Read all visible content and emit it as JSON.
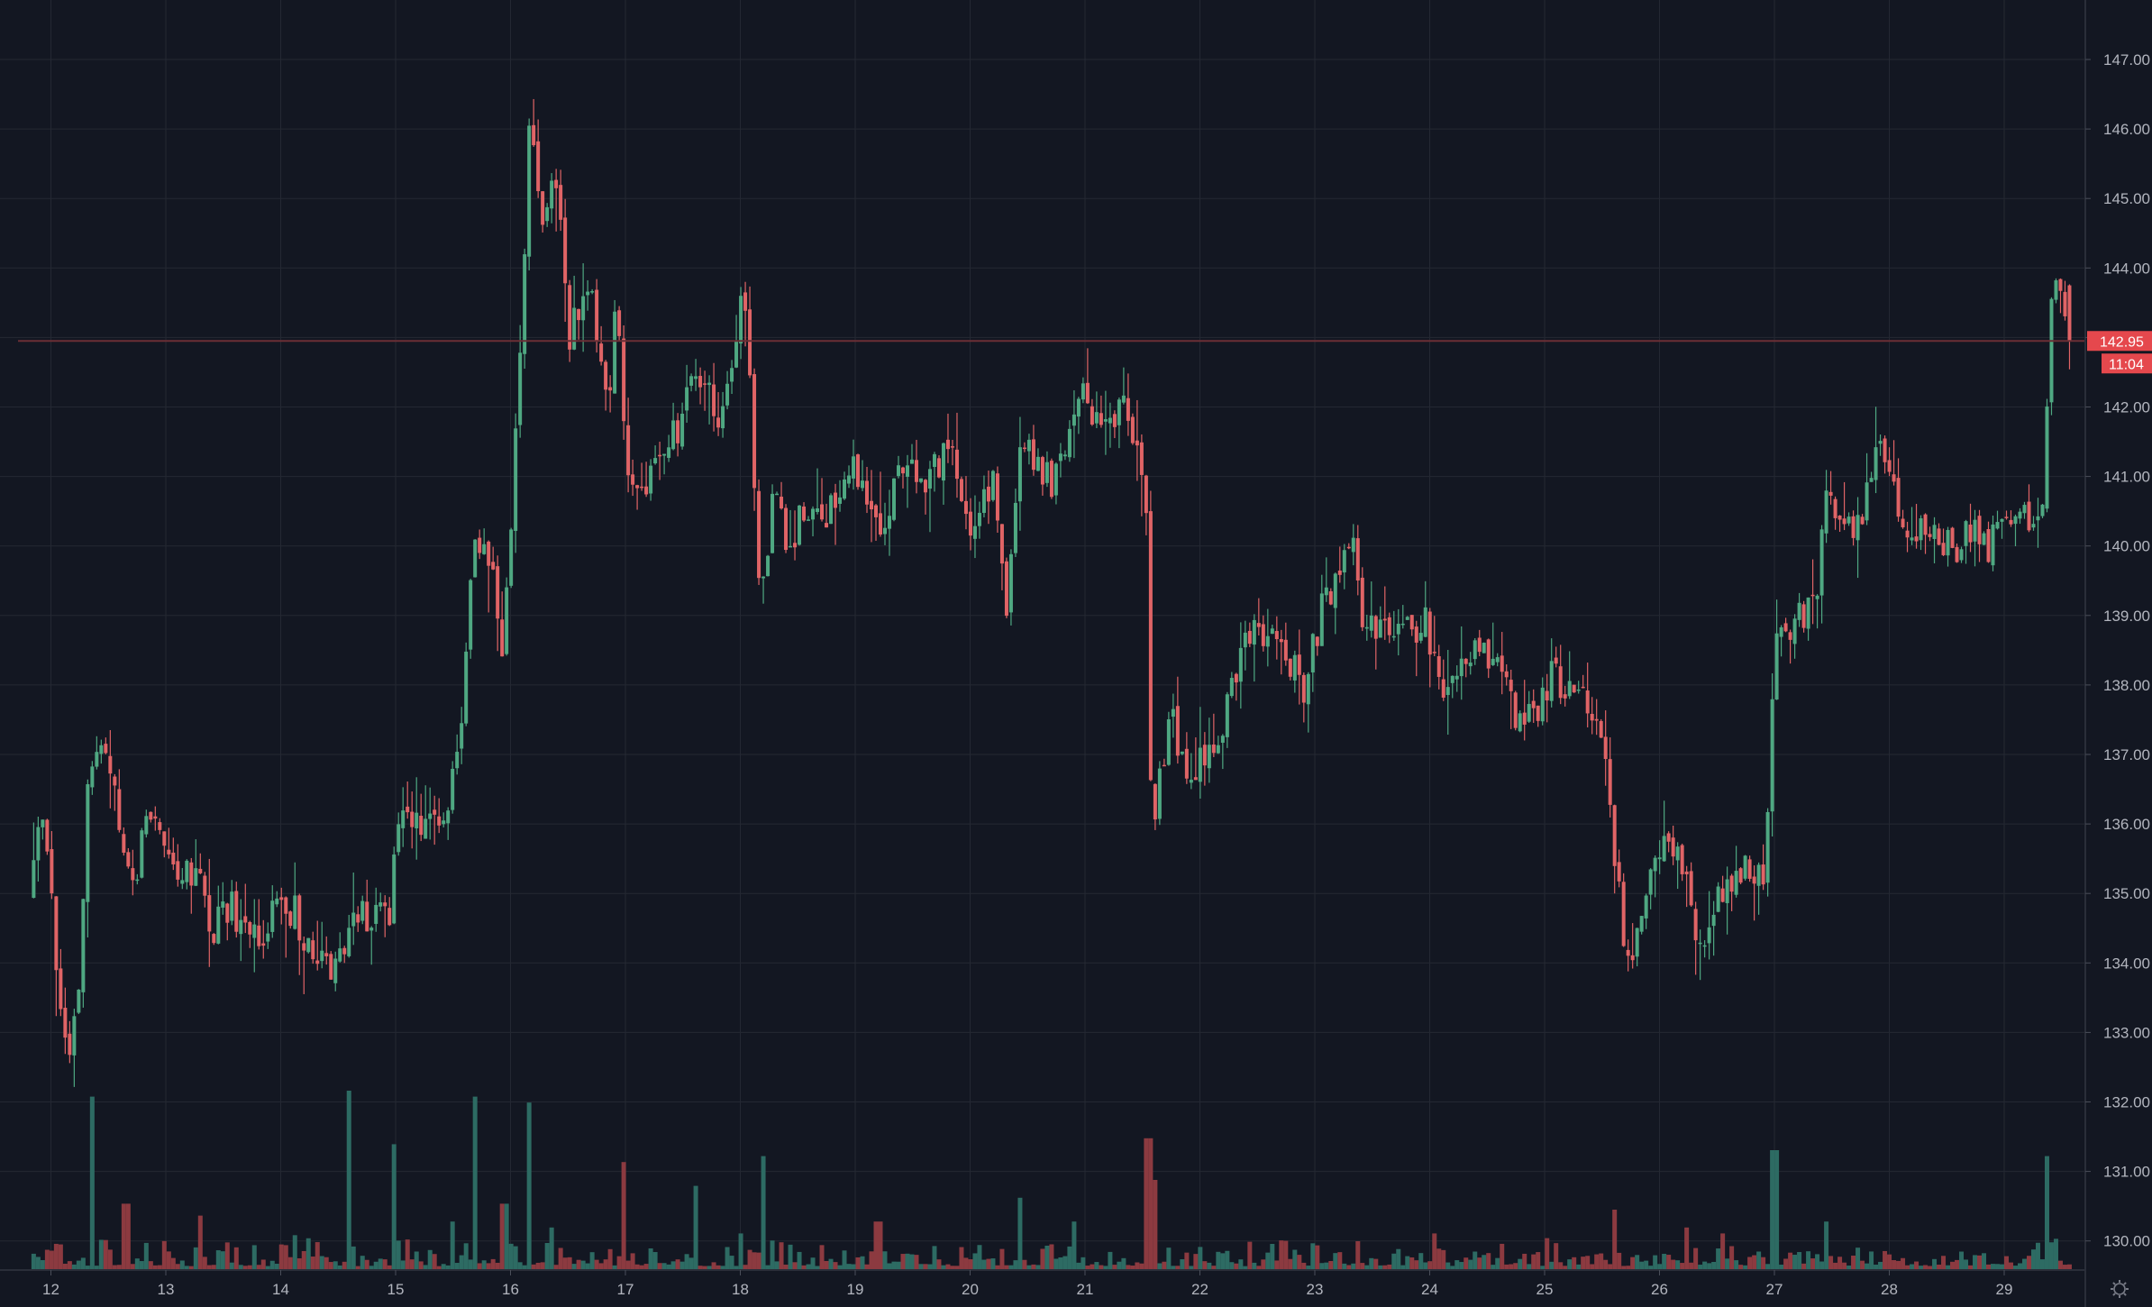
{
  "colors": {
    "background": "#131722",
    "grid": "#242833",
    "up": "#4fa882",
    "down": "#e06466",
    "vol_up": "#2d6b63",
    "vol_down": "#8c3a40",
    "axis_text": "#b2b5be",
    "price_line": "#6b2f35",
    "tag_bg": "#e5484d"
  },
  "icons": {
    "settings": "gear-icon"
  },
  "chart_data": {
    "type": "candlestick",
    "x_tick_labels": [
      "12",
      "13",
      "14",
      "15",
      "16",
      "17",
      "18",
      "19",
      "20",
      "21",
      "22",
      "23",
      "24",
      "25",
      "26",
      "27",
      "28",
      "29"
    ],
    "y_tick_labels": [
      "130.00",
      "131.00",
      "132.00",
      "133.00",
      "134.00",
      "135.00",
      "136.00",
      "137.00",
      "138.00",
      "139.00",
      "140.00",
      "141.00",
      "142.00",
      "143.00",
      "144.00",
      "145.00",
      "146.00",
      "147.00"
    ],
    "ylim": [
      129.8,
      147.3
    ],
    "grid": true,
    "last_price": 142.95,
    "last_price_label": "142.95",
    "countdown_label": "11:04",
    "price_path": [
      [
        11.85,
        134.9
      ],
      [
        11.95,
        136.1
      ],
      [
        12.05,
        135.1
      ],
      [
        12.12,
        133.2
      ],
      [
        12.2,
        132.8
      ],
      [
        12.3,
        133.8
      ],
      [
        12.36,
        136.6
      ],
      [
        12.45,
        137.3
      ],
      [
        12.6,
        136.3
      ],
      [
        12.75,
        135.1
      ],
      [
        12.9,
        136.2
      ],
      [
        13.0,
        136.1
      ],
      [
        13.15,
        135.2
      ],
      [
        13.3,
        135.3
      ],
      [
        13.45,
        134.3
      ],
      [
        13.55,
        134.9
      ],
      [
        13.7,
        134.6
      ],
      [
        13.85,
        134.4
      ],
      [
        14.0,
        134.7
      ],
      [
        14.15,
        134.8
      ],
      [
        14.3,
        134.2
      ],
      [
        14.45,
        133.9
      ],
      [
        14.55,
        134.3
      ],
      [
        14.7,
        134.6
      ],
      [
        14.85,
        134.7
      ],
      [
        15.0,
        134.8
      ],
      [
        15.05,
        135.9
      ],
      [
        15.2,
        136.1
      ],
      [
        15.35,
        135.9
      ],
      [
        15.5,
        136.3
      ],
      [
        15.6,
        137.4
      ],
      [
        15.7,
        139.7
      ],
      [
        15.8,
        140.2
      ],
      [
        15.9,
        139.6
      ],
      [
        15.97,
        138.6
      ],
      [
        16.05,
        140.6
      ],
      [
        16.12,
        142.4
      ],
      [
        16.2,
        146.1
      ],
      [
        16.3,
        144.7
      ],
      [
        16.45,
        145.4
      ],
      [
        16.55,
        142.9
      ],
      [
        16.7,
        143.9
      ],
      [
        16.9,
        142.2
      ],
      [
        16.96,
        143.9
      ],
      [
        17.05,
        141.3
      ],
      [
        17.2,
        140.8
      ],
      [
        17.35,
        141.4
      ],
      [
        17.5,
        141.7
      ],
      [
        17.6,
        142.4
      ],
      [
        17.75,
        142.2
      ],
      [
        17.85,
        141.8
      ],
      [
        17.95,
        142.6
      ],
      [
        18.05,
        143.6
      ],
      [
        18.12,
        142.8
      ],
      [
        18.2,
        139.3
      ],
      [
        18.35,
        140.8
      ],
      [
        18.45,
        140.0
      ],
      [
        18.6,
        140.5
      ],
      [
        18.75,
        140.4
      ],
      [
        18.9,
        140.8
      ],
      [
        19.05,
        141.2
      ],
      [
        19.2,
        140.3
      ],
      [
        19.35,
        140.6
      ],
      [
        19.45,
        141.1
      ],
      [
        19.6,
        140.9
      ],
      [
        19.75,
        141.1
      ],
      [
        19.9,
        141.4
      ],
      [
        20.0,
        140.2
      ],
      [
        20.1,
        140.6
      ],
      [
        20.25,
        140.9
      ],
      [
        20.35,
        139.0
      ],
      [
        20.45,
        141.2
      ],
      [
        20.6,
        141.3
      ],
      [
        20.75,
        140.8
      ],
      [
        20.88,
        141.4
      ],
      [
        20.98,
        142.3
      ],
      [
        21.08,
        141.8
      ],
      [
        21.2,
        141.8
      ],
      [
        21.35,
        142.0
      ],
      [
        21.5,
        141.6
      ],
      [
        21.58,
        140.3
      ],
      [
        21.62,
        135.8
      ],
      [
        21.7,
        136.8
      ],
      [
        21.8,
        137.5
      ],
      [
        21.9,
        136.9
      ],
      [
        22.05,
        136.9
      ],
      [
        22.2,
        137.2
      ],
      [
        22.35,
        138.1
      ],
      [
        22.5,
        139.0
      ],
      [
        22.65,
        138.6
      ],
      [
        22.8,
        138.3
      ],
      [
        22.95,
        138.0
      ],
      [
        23.1,
        139.1
      ],
      [
        23.25,
        139.5
      ],
      [
        23.38,
        140.4
      ],
      [
        23.45,
        139.0
      ],
      [
        23.6,
        138.7
      ],
      [
        23.75,
        138.9
      ],
      [
        23.9,
        138.6
      ],
      [
        24.0,
        139.1
      ],
      [
        24.1,
        138.1
      ],
      [
        24.25,
        137.9
      ],
      [
        24.4,
        138.5
      ],
      [
        24.5,
        138.7
      ],
      [
        24.6,
        138.3
      ],
      [
        24.75,
        137.8
      ],
      [
        24.85,
        137.3
      ],
      [
        24.95,
        137.6
      ],
      [
        25.1,
        138.1
      ],
      [
        25.25,
        138.0
      ],
      [
        25.4,
        137.8
      ],
      [
        25.55,
        137.3
      ],
      [
        25.65,
        135.6
      ],
      [
        25.75,
        134.0
      ],
      [
        25.85,
        134.5
      ],
      [
        25.95,
        135.4
      ],
      [
        26.1,
        135.6
      ],
      [
        26.25,
        135.3
      ],
      [
        26.35,
        134.6
      ],
      [
        26.45,
        134.3
      ],
      [
        26.6,
        135.2
      ],
      [
        26.75,
        135.3
      ],
      [
        26.95,
        135.3
      ],
      [
        27.05,
        138.6
      ],
      [
        27.25,
        138.9
      ],
      [
        27.4,
        139.3
      ],
      [
        27.5,
        140.7
      ],
      [
        27.65,
        140.2
      ],
      [
        27.8,
        140.3
      ],
      [
        27.95,
        141.6
      ],
      [
        28.05,
        141.0
      ],
      [
        28.15,
        140.4
      ],
      [
        28.3,
        140.2
      ],
      [
        28.45,
        140.3
      ],
      [
        28.6,
        139.8
      ],
      [
        28.75,
        140.3
      ],
      [
        28.9,
        139.9
      ],
      [
        29.05,
        140.4
      ],
      [
        29.15,
        140.7
      ],
      [
        29.3,
        140.2
      ],
      [
        29.38,
        140.9
      ],
      [
        29.45,
        143.8
      ],
      [
        29.52,
        143.9
      ],
      [
        29.6,
        142.95
      ]
    ],
    "volume_spikes": [
      [
        12.35,
        2.9
      ],
      [
        12.65,
        1.1
      ],
      [
        13.3,
        0.9
      ],
      [
        14.6,
        3.0
      ],
      [
        15.0,
        2.1
      ],
      [
        15.5,
        0.8
      ],
      [
        15.68,
        2.9
      ],
      [
        15.95,
        1.1
      ],
      [
        16.17,
        2.8
      ],
      [
        16.35,
        0.7
      ],
      [
        17.0,
        1.8
      ],
      [
        17.6,
        1.4
      ],
      [
        18.0,
        0.6
      ],
      [
        18.2,
        1.9
      ],
      [
        19.2,
        0.8
      ],
      [
        20.45,
        1.2
      ],
      [
        20.9,
        0.8
      ],
      [
        21.55,
        2.2
      ],
      [
        21.62,
        1.5
      ],
      [
        24.05,
        0.6
      ],
      [
        25.6,
        1.0
      ],
      [
        26.25,
        0.7
      ],
      [
        26.55,
        0.6
      ],
      [
        27.0,
        2.0
      ],
      [
        27.45,
        0.8
      ],
      [
        29.38,
        1.9
      ]
    ]
  }
}
